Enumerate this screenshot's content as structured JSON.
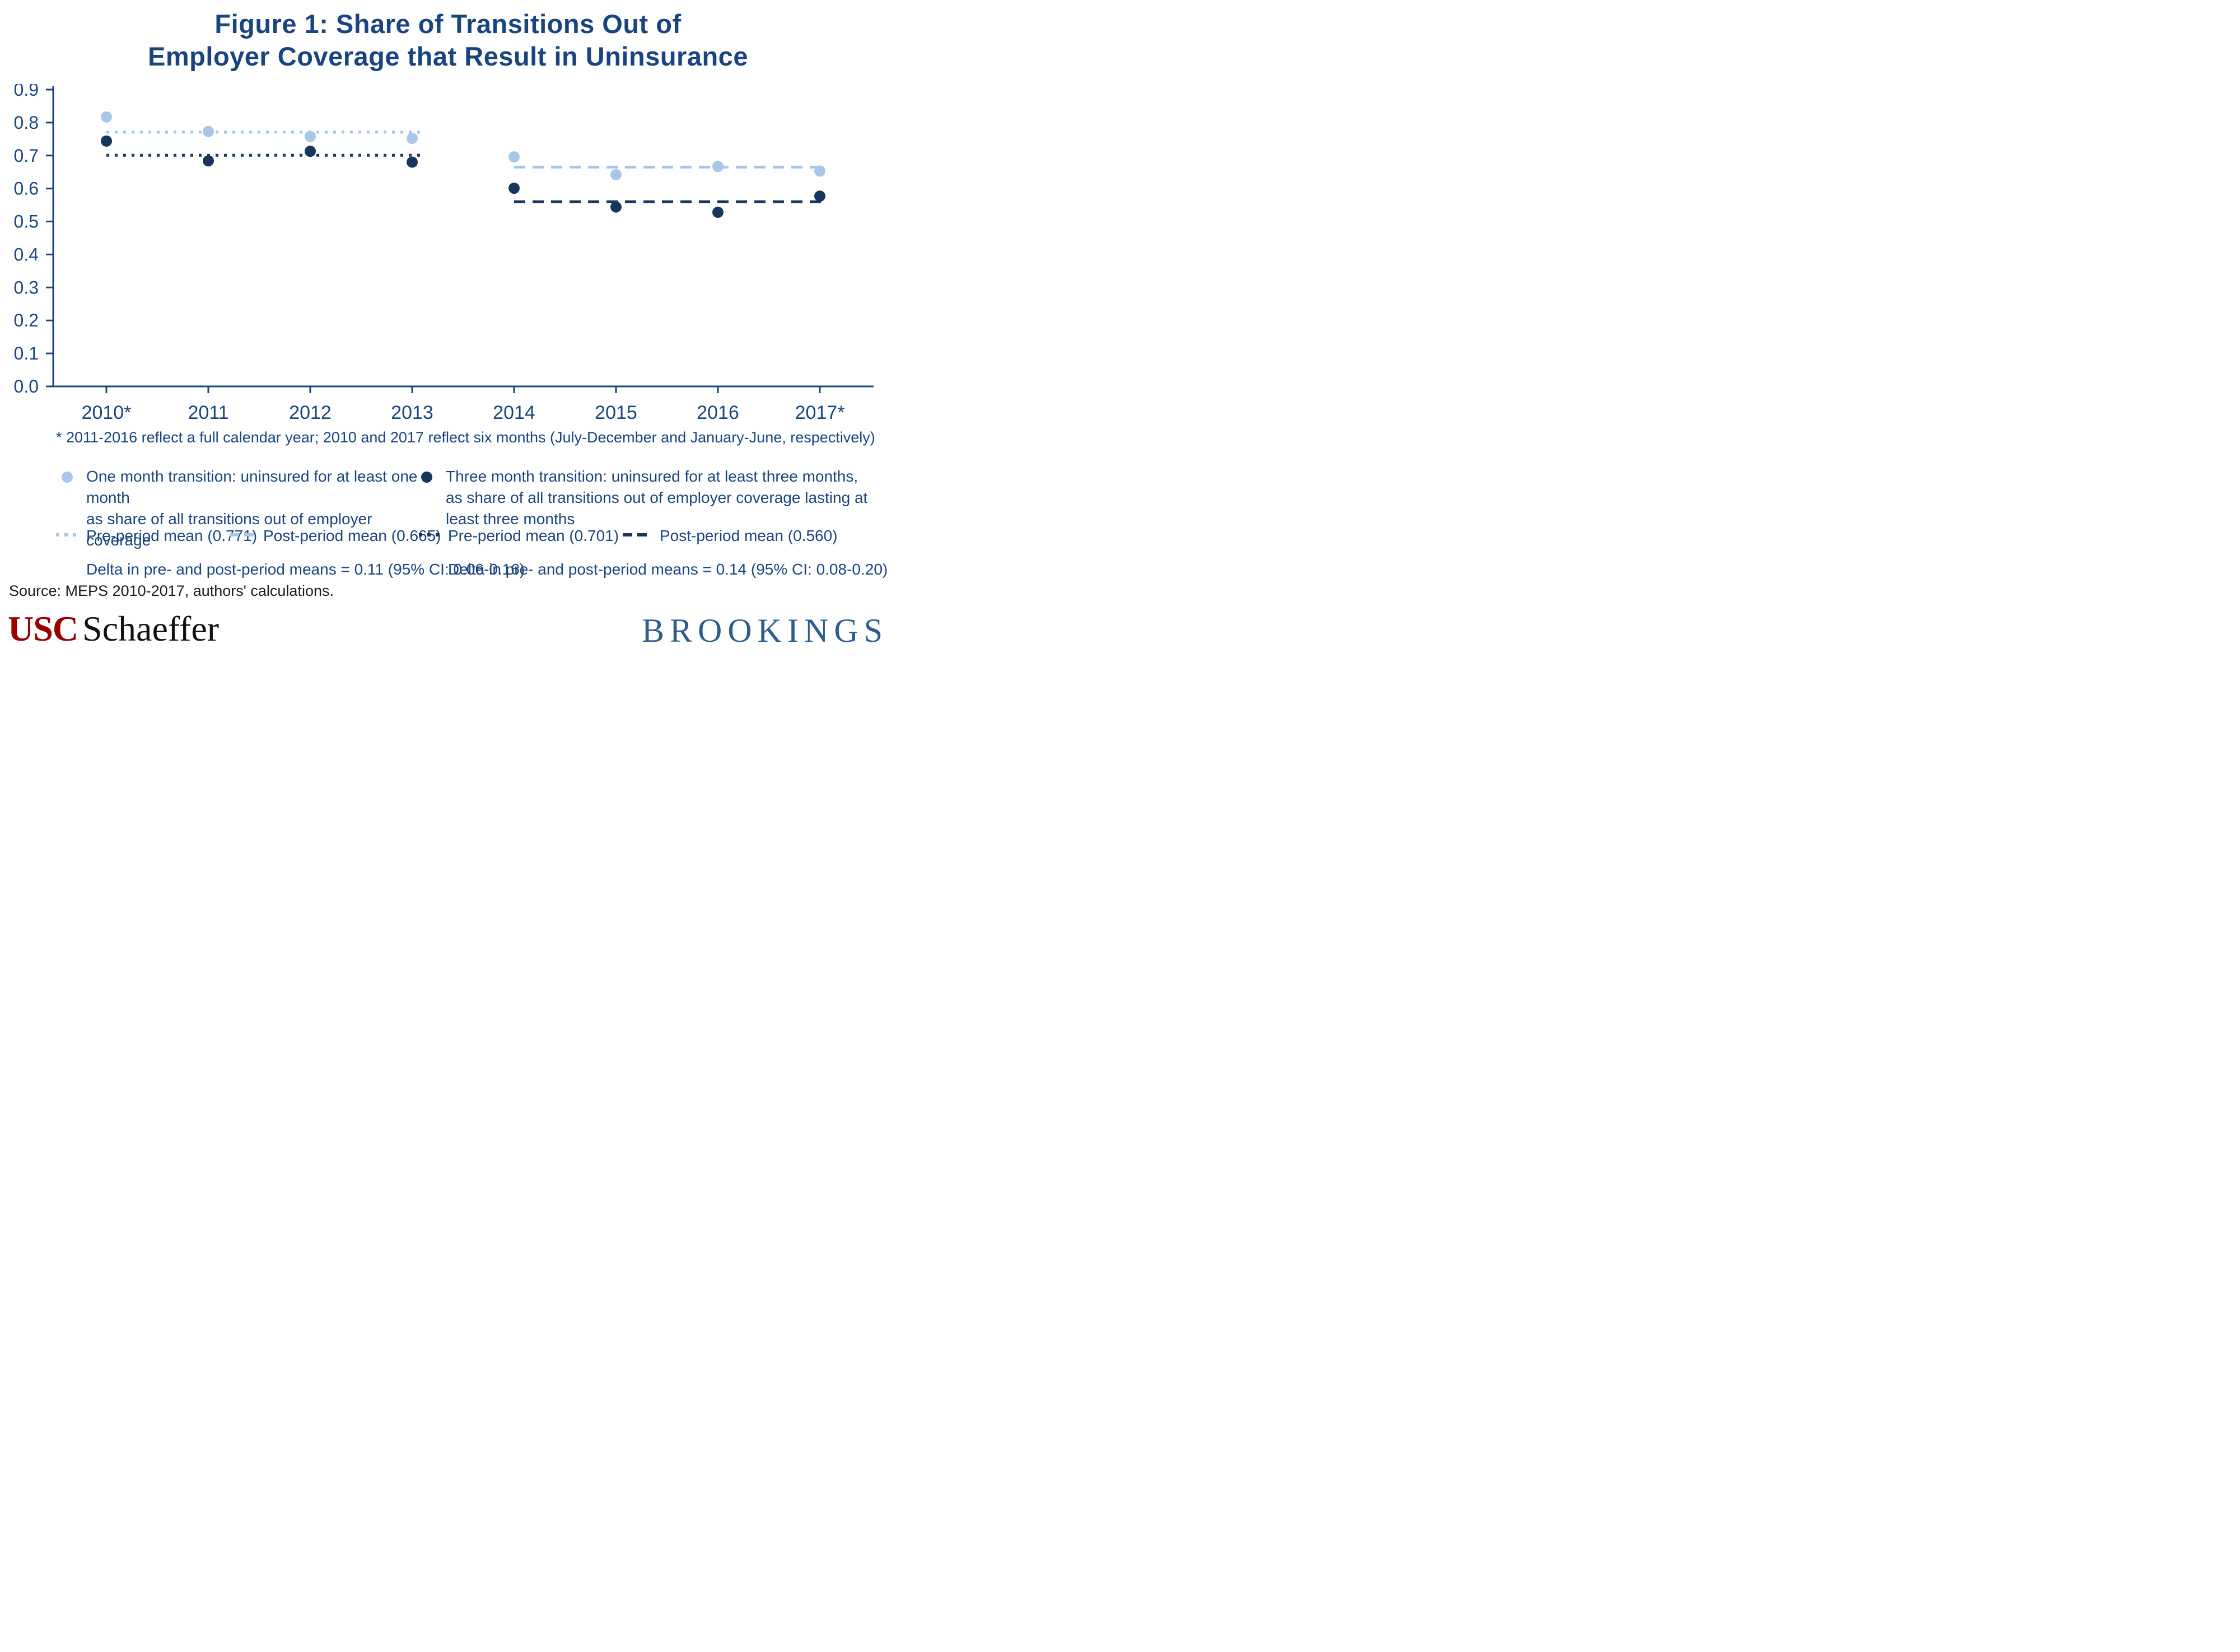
{
  "title": {
    "line1": "Figure 1: Share of Transitions Out of",
    "line2": "Employer Coverage that Result in Uninsurance"
  },
  "footnote": "* 2011-2016 reflect a full calendar year; 2010 and 2017 reflect six months (July-December and January-June, respectively)",
  "source": "Source: MEPS 2010-2017, authors' calculations.",
  "logos": {
    "usc": "USC",
    "schaeffer": "Schaeffer",
    "brookings": "BROOKINGS"
  },
  "colors": {
    "light_blue": "#A7C6E8",
    "dark_blue": "#17365D",
    "title_blue": "#1A4480",
    "axis_line": "#1A4480",
    "axis_text": "#1A4480",
    "usc_maroon": "#990000",
    "brookings_blue": "#2E5C8F"
  },
  "chart_data": {
    "type": "scatter",
    "title": "Figure 1: Share of Transitions Out of Employer Coverage that Result in Uninsurance",
    "categories": [
      "2010*",
      "2011",
      "2012",
      "2013",
      "2014",
      "2015",
      "2016",
      "2017*"
    ],
    "series": [
      {
        "name": "One month transition",
        "color_key": "light_blue",
        "values": [
          0.817,
          0.773,
          0.758,
          0.752,
          0.696,
          0.642,
          0.667,
          0.653
        ]
      },
      {
        "name": "Three month transition",
        "color_key": "dark_blue",
        "values": [
          0.744,
          0.684,
          0.713,
          0.68,
          0.601,
          0.544,
          0.528,
          0.577
        ]
      }
    ],
    "reference_lines": [
      {
        "label": "Pre-period mean (0.771)",
        "value": 0.771,
        "span": [
          0,
          3
        ],
        "style": "dotted",
        "color_key": "light_blue"
      },
      {
        "label": "Post-period mean (0.665)",
        "value": 0.665,
        "span": [
          4,
          7
        ],
        "style": "dashed",
        "color_key": "light_blue"
      },
      {
        "label": "Pre-period mean (0.701)",
        "value": 0.701,
        "span": [
          0,
          3
        ],
        "style": "dotted",
        "color_key": "dark_blue"
      },
      {
        "label": "Post-period mean (0.560)",
        "value": 0.56,
        "span": [
          4,
          7
        ],
        "style": "dashed",
        "color_key": "dark_blue"
      }
    ],
    "ylim": [
      0.0,
      0.9
    ],
    "ytick_step": 0.1,
    "ytick_labels": [
      "0.0",
      "0.1",
      "0.2",
      "0.3",
      "0.4",
      "0.5",
      "0.6",
      "0.7",
      "0.8",
      "0.9"
    ],
    "xlabel": "",
    "ylabel": "",
    "grid": false,
    "legend_position": "below"
  },
  "legend": {
    "series1_line1": "One month transition: uninsured for at least one month",
    "series1_line2": "as share of all transitions out of employer coverage",
    "series2_line1": "Three month transition: uninsured for at least three months,",
    "series2_line2": "as share of all transitions out of employer coverage lasting at least three months",
    "pre1": "Pre-period mean (0.771)",
    "post1": "Post-period mean (0.665)",
    "pre2": "Pre-period mean (0.701)",
    "post2": "Post-period mean (0.560)",
    "delta1": "Delta in pre- and post-period means = 0.11 (95% CI: 0.06-0.16)",
    "delta2": "Delta in pre- and post-period means = 0.14 (95% CI: 0.08-0.20)"
  }
}
